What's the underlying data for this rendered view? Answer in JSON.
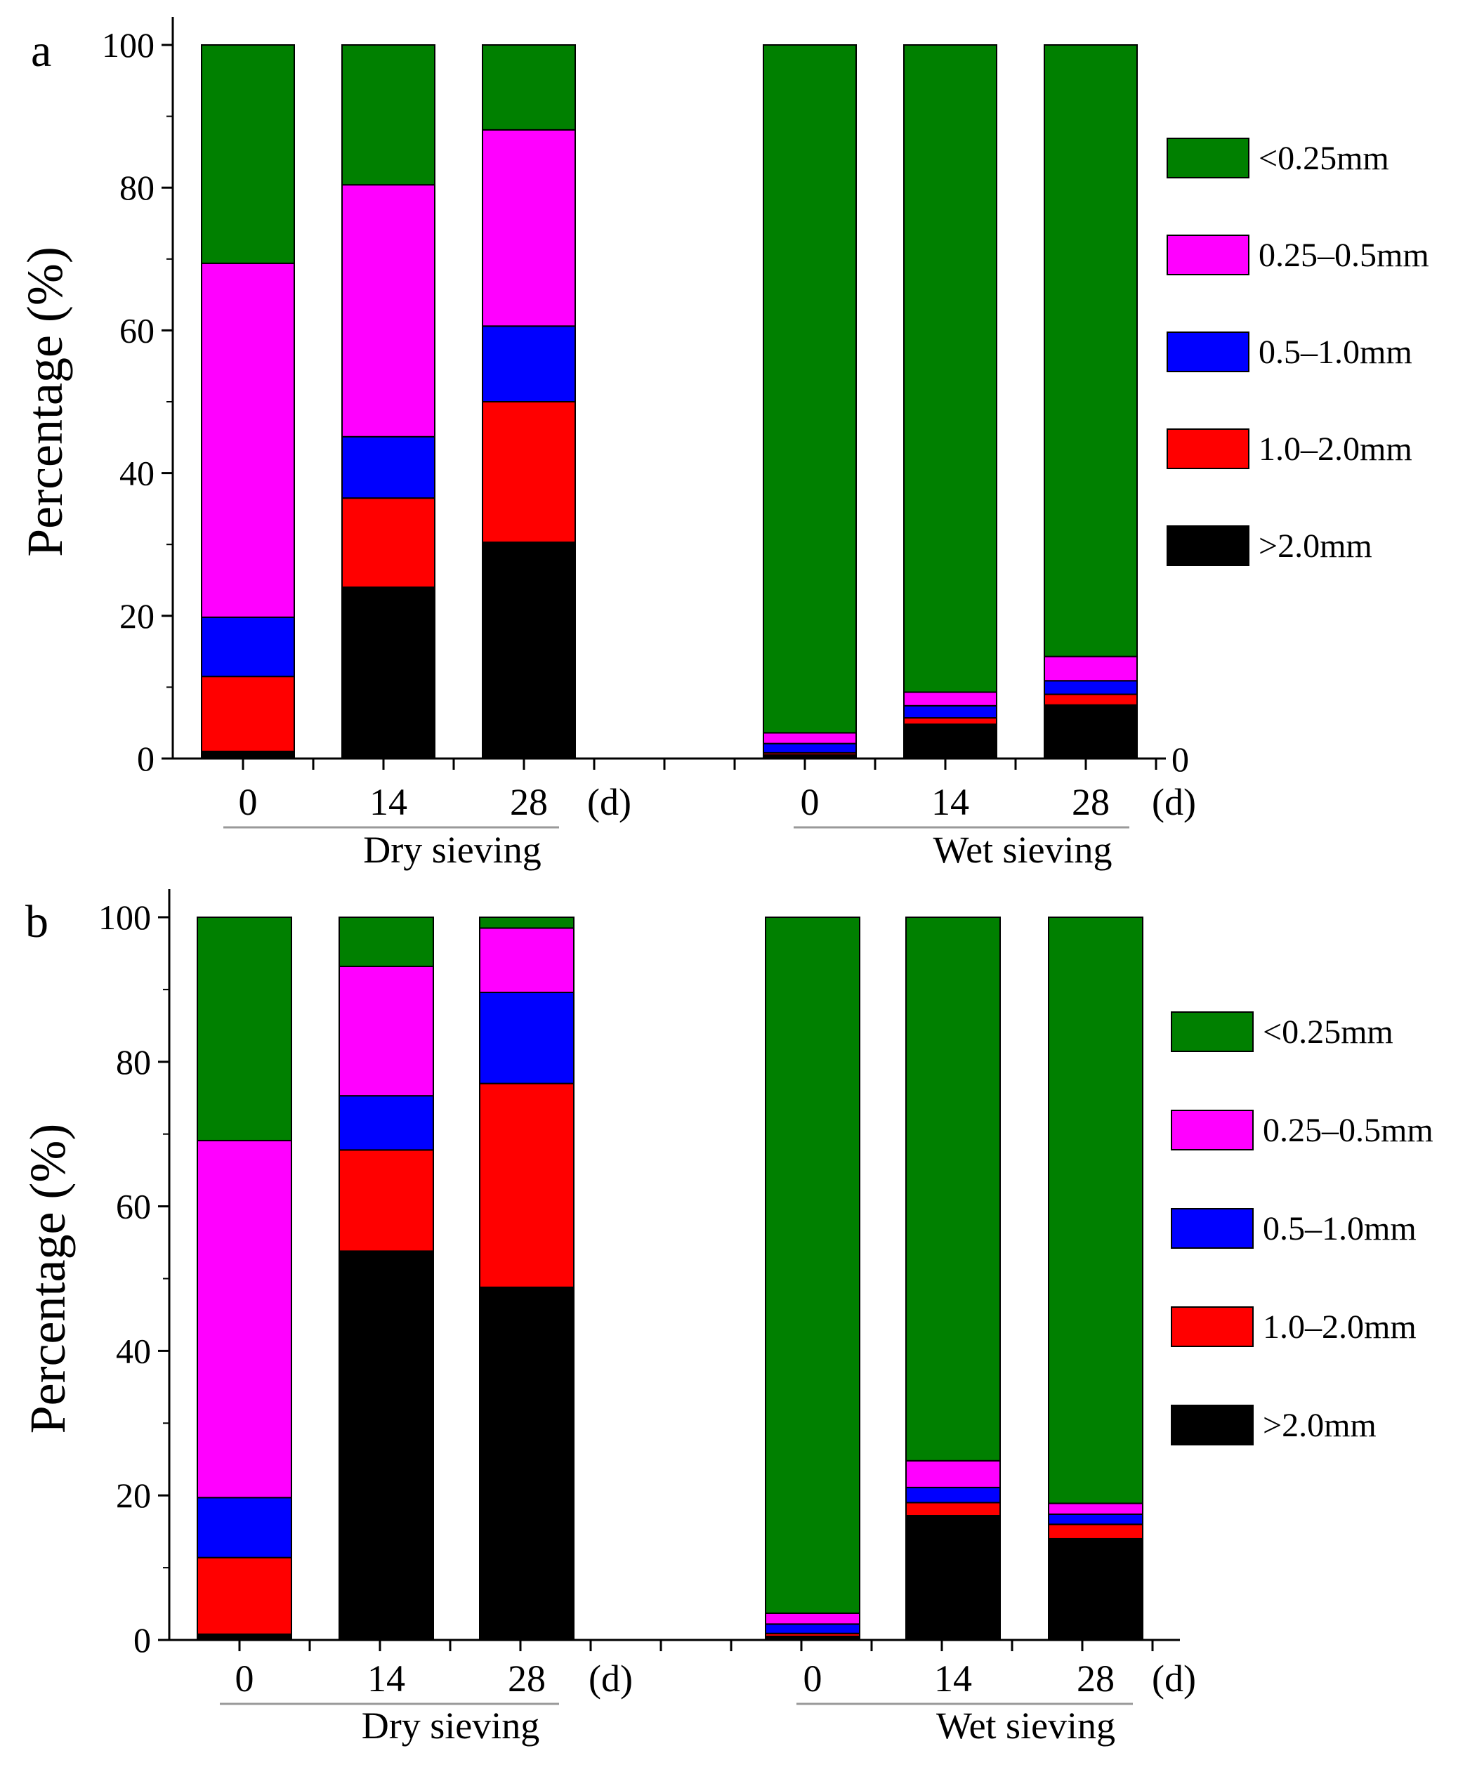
{
  "chart_data": [
    {
      "type": "bar",
      "stacked": true,
      "panel_label": "a",
      "ylabel": "Percentage (%)",
      "ylim": [
        0,
        100
      ],
      "yticks": [
        0,
        20,
        40,
        60,
        80,
        100
      ],
      "right_axis_zero_label": "0",
      "unit_label": "(d)",
      "groups": [
        {
          "name": "Dry sieving",
          "categories": [
            "0",
            "14",
            "28"
          ]
        },
        {
          "name": "Wet sieving",
          "categories": [
            "0",
            "14",
            "28"
          ]
        }
      ],
      "series": [
        {
          "name": ">2.0mm",
          "color": "#000000",
          "values": [
            1,
            24,
            30.3,
            0.5,
            4.8,
            7.5
          ]
        },
        {
          "name": "1.0–2.0mm",
          "color": "#ff0000",
          "values": [
            10.5,
            12.5,
            19.7,
            0.3,
            0.9,
            1.5
          ]
        },
        {
          "name": "0.5–1.0mm",
          "color": "#0000ff",
          "values": [
            8.3,
            8.6,
            10.6,
            1.3,
            1.7,
            1.9
          ]
        },
        {
          "name": "0.25–0.5mm",
          "color": "#ff00ff",
          "values": [
            49.6,
            35.3,
            27.5,
            1.5,
            1.9,
            3.4
          ]
        },
        {
          "name": "<0.25mm",
          "color": "#008000",
          "values": [
            30.6,
            19.6,
            11.9,
            96.4,
            90.7,
            85.7
          ]
        }
      ],
      "legend_position": "right"
    },
    {
      "type": "bar",
      "stacked": true,
      "panel_label": "b",
      "ylabel": "Percentage (%)",
      "ylim": [
        0,
        100
      ],
      "yticks": [
        0,
        20,
        40,
        60,
        80,
        100
      ],
      "unit_label": "(d)",
      "groups": [
        {
          "name": "Dry sieving",
          "categories": [
            "0",
            "14",
            "28"
          ]
        },
        {
          "name": "Wet sieving",
          "categories": [
            "0",
            "14",
            "28"
          ]
        }
      ],
      "series": [
        {
          "name": ">2.0mm",
          "color": "#000000",
          "values": [
            0.8,
            53.8,
            48.8,
            0.5,
            17.2,
            14
          ]
        },
        {
          "name": "1.0–2.0mm",
          "color": "#ff0000",
          "values": [
            10.6,
            14,
            28.2,
            0.4,
            1.8,
            2
          ]
        },
        {
          "name": "0.5–1.0mm",
          "color": "#0000ff",
          "values": [
            8.3,
            7.5,
            12.6,
            1.3,
            2.1,
            1.4
          ]
        },
        {
          "name": "0.25–0.5mm",
          "color": "#ff00ff",
          "values": [
            49.4,
            17.9,
            8.9,
            1.5,
            3.7,
            1.5
          ]
        },
        {
          "name": "<0.25mm",
          "color": "#008000",
          "values": [
            30.9,
            6.8,
            1.5,
            96.3,
            75.2,
            81.1
          ]
        }
      ],
      "legend_position": "right"
    }
  ]
}
